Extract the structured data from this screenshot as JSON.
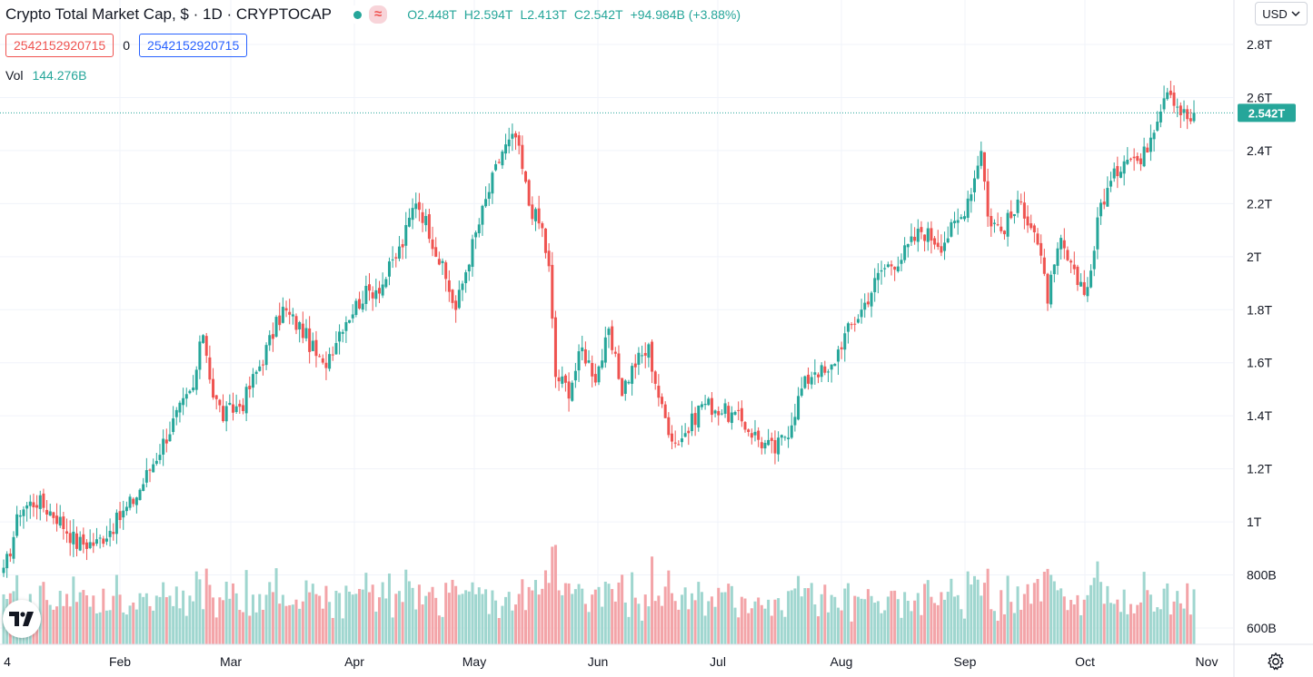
{
  "header": {
    "title": "Crypto Total Market Cap, $ · 1D · CRYPTOCAP",
    "wave_symbol": "≈",
    "ohlc": [
      {
        "k": "O",
        "v": "2.448T"
      },
      {
        "k": "H",
        "v": "2.594T"
      },
      {
        "k": "L",
        "v": "2.413T"
      },
      {
        "k": "C",
        "v": "2.542T"
      }
    ],
    "change": "+94.984B (+3.88%)"
  },
  "row2": {
    "box1": "2542152920715",
    "zero": "0",
    "box2": "2542152920715"
  },
  "volume": {
    "label": "Vol",
    "value": "144.276B"
  },
  "currency": "USD",
  "last_price_label": "2.542T",
  "colors": {
    "up": "#26a69a",
    "down": "#ef5350",
    "up_vol": "#9fd6cf",
    "down_vol": "#f3a4a8",
    "grid": "#f0f3fa"
  },
  "chart_data": {
    "type": "candlestick",
    "title": "Crypto Total Market Cap, $ · 1D · CRYPTOCAP",
    "y_ticks": [
      "2.8T",
      "2.6T",
      "2.4T",
      "2.2T",
      "2T",
      "1.8T",
      "1.6T",
      "1.4T",
      "1.2T",
      "1T",
      "800B",
      "600B"
    ],
    "y_tick_values": [
      2.8,
      2.6,
      2.4,
      2.2,
      2.0,
      1.8,
      1.6,
      1.4,
      1.2,
      1.0,
      0.8,
      0.6
    ],
    "x_ticks": [
      "4",
      "Feb",
      "Mar",
      "Apr",
      "May",
      "Jun",
      "Jul",
      "Aug",
      "Sep",
      "Oct",
      "Nov"
    ],
    "price_anchors": [
      [
        0,
        0.8
      ],
      [
        5,
        1.05
      ],
      [
        10,
        1.08
      ],
      [
        16,
        1.02
      ],
      [
        22,
        0.92
      ],
      [
        28,
        0.92
      ],
      [
        34,
        1.0
      ],
      [
        40,
        1.1
      ],
      [
        46,
        1.25
      ],
      [
        52,
        1.4
      ],
      [
        57,
        1.5
      ],
      [
        60,
        1.72
      ],
      [
        63,
        1.48
      ],
      [
        66,
        1.4
      ],
      [
        72,
        1.45
      ],
      [
        78,
        1.62
      ],
      [
        84,
        1.8
      ],
      [
        90,
        1.72
      ],
      [
        96,
        1.58
      ],
      [
        102,
        1.75
      ],
      [
        108,
        1.85
      ],
      [
        114,
        1.9
      ],
      [
        120,
        2.05
      ],
      [
        124,
        2.22
      ],
      [
        128,
        2.1
      ],
      [
        132,
        1.95
      ],
      [
        136,
        1.8
      ],
      [
        140,
        2.0
      ],
      [
        146,
        2.25
      ],
      [
        150,
        2.4
      ],
      [
        154,
        2.45
      ],
      [
        158,
        2.2
      ],
      [
        162,
        2.1
      ],
      [
        164,
        1.95
      ],
      [
        166,
        1.55
      ],
      [
        170,
        1.5
      ],
      [
        174,
        1.65
      ],
      [
        178,
        1.55
      ],
      [
        182,
        1.7
      ],
      [
        186,
        1.5
      ],
      [
        190,
        1.6
      ],
      [
        194,
        1.65
      ],
      [
        198,
        1.42
      ],
      [
        202,
        1.3
      ],
      [
        206,
        1.35
      ],
      [
        210,
        1.45
      ],
      [
        216,
        1.42
      ],
      [
        222,
        1.38
      ],
      [
        228,
        1.3
      ],
      [
        232,
        1.27
      ],
      [
        236,
        1.35
      ],
      [
        240,
        1.5
      ],
      [
        244,
        1.58
      ],
      [
        248,
        1.55
      ],
      [
        252,
        1.68
      ],
      [
        258,
        1.8
      ],
      [
        264,
        1.95
      ],
      [
        270,
        2.0
      ],
      [
        276,
        2.1
      ],
      [
        282,
        2.05
      ],
      [
        288,
        2.15
      ],
      [
        292,
        2.3
      ],
      [
        294,
        2.42
      ],
      [
        296,
        2.15
      ],
      [
        300,
        2.1
      ],
      [
        306,
        2.2
      ],
      [
        310,
        2.1
      ],
      [
        314,
        1.85
      ],
      [
        318,
        2.05
      ],
      [
        322,
        1.92
      ],
      [
        326,
        1.88
      ],
      [
        330,
        2.2
      ],
      [
        334,
        2.3
      ],
      [
        338,
        2.4
      ],
      [
        342,
        2.35
      ],
      [
        346,
        2.5
      ],
      [
        350,
        2.65
      ],
      [
        354,
        2.55
      ],
      [
        358,
        2.5
      ]
    ],
    "high_max": 2.75,
    "low_min": 1.12,
    "last_close": 2.542,
    "volume_range": [
      0.6,
      1.15
    ]
  }
}
